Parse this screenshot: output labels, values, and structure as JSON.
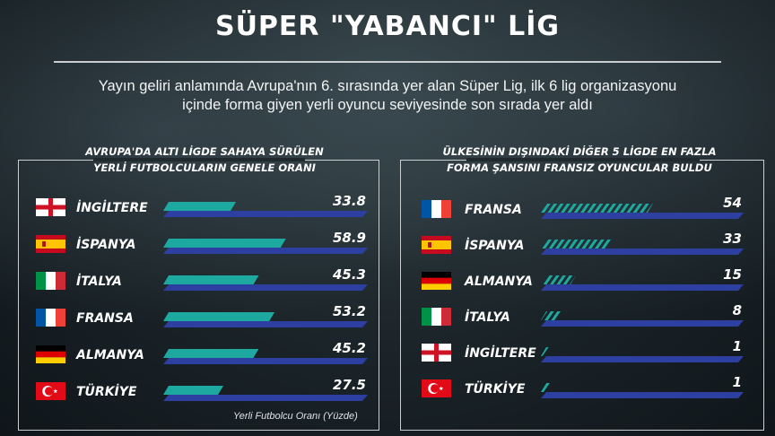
{
  "title": "SÜPER \"YABANCI\" LİG",
  "subtitle_line1": "Yayın geliri anlamında Avrupa'nın 6. sırasında yer alan Süper Lig, ilk 6 lig organizasyonu",
  "subtitle_line2": "içinde forma giyen yerli oyuncu seviyesinde son sırada yer aldı",
  "footnote": "Yerli Futbolcu Oranı (Yüzde)",
  "colors": {
    "base_bar": "#2d3fa0",
    "teal_bar": "#1ea9a0",
    "hatch": "#1ea9a0"
  },
  "chart_data": [
    {
      "type": "bar",
      "title_line1": "AVRUPA'DA ALTI LİGDE SAHAYA SÜRÜLEN",
      "title_line2": "YERLİ FUTBOLCULARIN GENELE ORANI",
      "categories": [
        "İNGİLTERE",
        "İSPANYA",
        "İTALYA",
        "FRANSA",
        "ALMANYA",
        "TÜRKİYE"
      ],
      "flags": [
        "england",
        "spain",
        "italy",
        "france",
        "germany",
        "turkey"
      ],
      "values": [
        33.8,
        58.9,
        45.3,
        53.2,
        45.2,
        27.5
      ],
      "value_labels": [
        "33.8",
        "58.9",
        "45.3",
        "53.2",
        "45.2",
        "27.5"
      ],
      "xlim": [
        0,
        100
      ],
      "xlabel": "Yerli Futbolcu Oranı (Yüzde)"
    },
    {
      "type": "bar",
      "title_line1": "ÜLKESİNİN DIŞINDAKİ DİĞER 5 LİGDE EN FAZLA",
      "title_line2": "FORMA ŞANSINI FRANSIZ OYUNCULAR BULDU",
      "categories": [
        "FRANSA",
        "İSPANYA",
        "ALMANYA",
        "İTALYA",
        "İNGİLTERE",
        "TÜRKİYE"
      ],
      "flags": [
        "france",
        "spain",
        "germany",
        "italy",
        "england",
        "turkey"
      ],
      "values": [
        54,
        33,
        15,
        8,
        1,
        1
      ],
      "value_labels": [
        "54",
        "33",
        "15",
        "8",
        "1",
        "1"
      ],
      "xlim": [
        0,
        100
      ]
    }
  ]
}
